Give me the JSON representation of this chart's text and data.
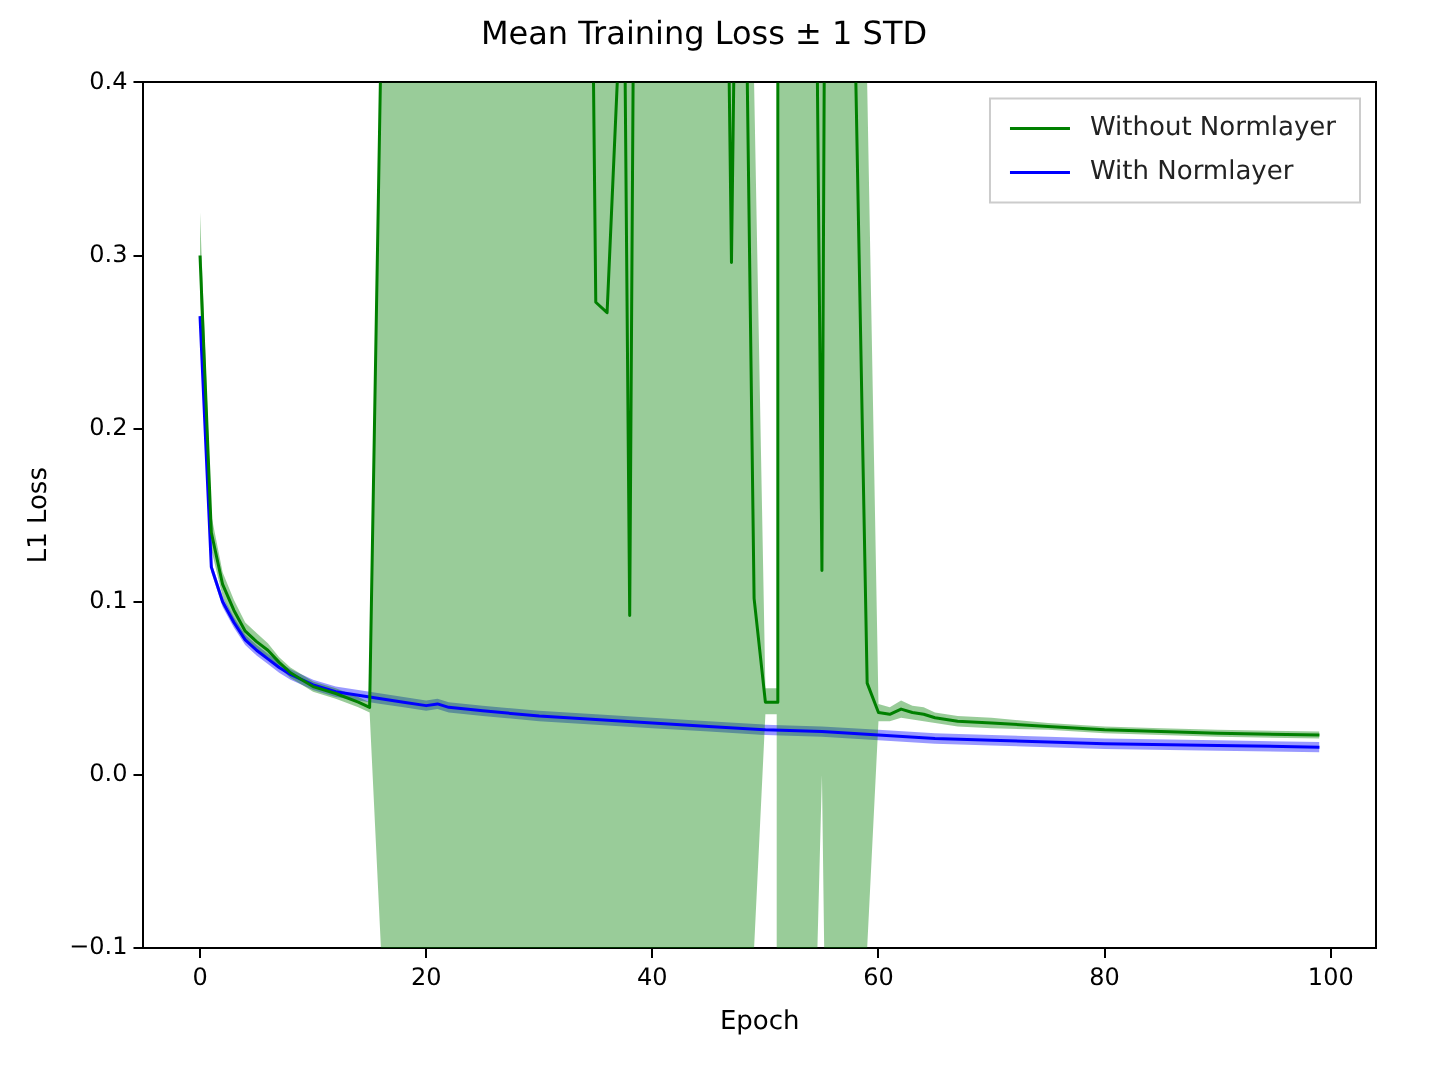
{
  "chart_data": {
    "type": "line",
    "title": "Mean Training Loss ± 1 STD",
    "xlabel": "Epoch",
    "ylabel": "L1 Loss",
    "xlim": [
      -5,
      104
    ],
    "xticks": [
      0,
      20,
      40,
      60,
      80,
      100
    ],
    "ylim": [
      -0.1,
      0.4
    ],
    "yticks": [
      {
        "value": -0.1,
        "label": "−0.1"
      },
      {
        "value": 0,
        "label": "0.0"
      },
      {
        "value": 0.1,
        "label": "0.1"
      },
      {
        "value": 0.2,
        "label": "0.2"
      },
      {
        "value": 0.3,
        "label": "0.3"
      },
      {
        "value": 0.4,
        "label": "0.4"
      }
    ],
    "grid": false,
    "legend": "top right",
    "line_style": "solid",
    "marker": "none",
    "series": [
      {
        "name": "Without Normlayer",
        "color": "#008000",
        "x": [
          0,
          1,
          2,
          3,
          4,
          5,
          6,
          7,
          8,
          9,
          10,
          12,
          14,
          15,
          15.95,
          16,
          34.8,
          35,
          36,
          36.9,
          37.2,
          37.6,
          38,
          38.3,
          39,
          46.8,
          47,
          47.2,
          48,
          48.4,
          49,
          50,
          51,
          51.1,
          52,
          54.6,
          55,
          55.2,
          56,
          58,
          59,
          60,
          61,
          62,
          63,
          64,
          65,
          67,
          70,
          75,
          80,
          85,
          90,
          99
        ],
        "values": [
          0.3,
          0.14,
          0.11,
          0.095,
          0.083,
          0.077,
          0.072,
          0.065,
          0.059,
          0.055,
          0.051,
          0.047,
          0.042,
          0.039,
          0.4,
          null,
          0.4,
          0.273,
          0.267,
          0.4,
          null,
          0.4,
          0.092,
          0.4,
          null,
          0.4,
          0.296,
          0.4,
          null,
          0.4,
          0.102,
          0.042,
          0.042,
          0.4,
          null,
          0.4,
          0.118,
          0.4,
          null,
          0.4,
          0.053,
          0.036,
          0.035,
          0.038,
          0.036,
          0.035,
          0.033,
          0.031,
          0.03,
          0.028,
          0.026,
          0.025,
          0.024,
          0.023
        ],
        "lower": [
          0.275,
          0.13,
          0.103,
          0.089,
          0.078,
          0.072,
          0.068,
          0.062,
          0.056,
          0.052,
          0.048,
          0.044,
          0.039,
          0.036,
          -0.1,
          -0.1,
          -0.1,
          -0.1,
          -0.1,
          -0.1,
          -0.1,
          -0.1,
          -0.1,
          -0.1,
          -0.1,
          -0.1,
          -0.1,
          -0.1,
          -0.1,
          -0.1,
          -0.1,
          0.035,
          0.035,
          -0.1,
          -0.1,
          -0.1,
          0.0,
          -0.1,
          -0.1,
          -0.1,
          -0.1,
          0.031,
          0.031,
          0.033,
          0.032,
          0.031,
          0.03,
          0.028,
          0.027,
          0.026,
          0.024,
          0.023,
          0.022,
          0.021
        ],
        "upper": [
          0.325,
          0.15,
          0.117,
          0.101,
          0.088,
          0.082,
          0.076,
          0.068,
          0.062,
          0.058,
          0.054,
          0.05,
          0.045,
          0.042,
          0.4,
          0.4,
          0.4,
          0.4,
          0.4,
          0.4,
          0.4,
          0.4,
          0.4,
          0.4,
          0.4,
          0.4,
          0.4,
          0.4,
          0.4,
          0.4,
          0.4,
          0.05,
          0.05,
          0.4,
          0.4,
          0.4,
          0.4,
          0.4,
          0.4,
          0.4,
          0.4,
          0.041,
          0.039,
          0.043,
          0.04,
          0.039,
          0.036,
          0.034,
          0.033,
          0.03,
          0.028,
          0.027,
          0.026,
          0.025
        ]
      },
      {
        "name": "With Normlayer",
        "color": "#0000ff",
        "x": [
          0,
          1,
          2,
          3,
          4,
          5,
          6,
          7,
          8,
          9,
          10,
          12,
          14,
          16,
          18,
          20,
          21,
          22,
          25,
          30,
          35,
          40,
          45,
          50,
          55,
          60,
          65,
          70,
          80,
          90,
          99
        ],
        "values": [
          0.265,
          0.12,
          0.1,
          0.088,
          0.078,
          0.072,
          0.067,
          0.062,
          0.058,
          0.055,
          0.052,
          0.048,
          0.046,
          0.044,
          0.042,
          0.04,
          0.041,
          0.039,
          0.037,
          0.034,
          0.032,
          0.03,
          0.028,
          0.026,
          0.025,
          0.023,
          0.021,
          0.02,
          0.018,
          0.017,
          0.016
        ],
        "lower": [
          0.262,
          0.117,
          0.097,
          0.085,
          0.075,
          0.069,
          0.064,
          0.059,
          0.055,
          0.052,
          0.049,
          0.045,
          0.043,
          0.041,
          0.039,
          0.037,
          0.038,
          0.036,
          0.034,
          0.031,
          0.029,
          0.027,
          0.025,
          0.023,
          0.022,
          0.02,
          0.018,
          0.017,
          0.015,
          0.014,
          0.013
        ],
        "upper": [
          0.268,
          0.123,
          0.103,
          0.091,
          0.081,
          0.075,
          0.07,
          0.065,
          0.061,
          0.058,
          0.055,
          0.051,
          0.049,
          0.047,
          0.045,
          0.043,
          0.044,
          0.042,
          0.04,
          0.037,
          0.035,
          0.033,
          0.031,
          0.029,
          0.028,
          0.026,
          0.024,
          0.023,
          0.021,
          0.02,
          0.019
        ]
      }
    ]
  }
}
